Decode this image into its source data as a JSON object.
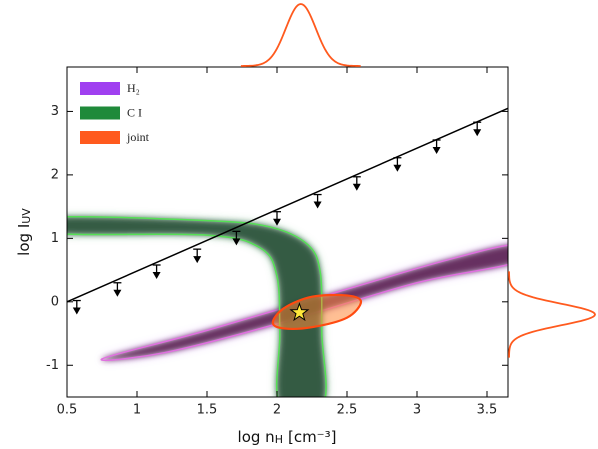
{
  "chart_data": {
    "type": "contour",
    "xlabel": [
      "log n",
      "H",
      "[cm⁻³]"
    ],
    "ylabel": [
      "log I",
      "UV"
    ],
    "xlim": [
      0.5,
      3.65
    ],
    "xticks": [
      0.5,
      1.0,
      1.5,
      2.0,
      2.5,
      3.0,
      3.5
    ],
    "ylim": [
      -1.5,
      3.7
    ],
    "yticks": [
      -1,
      0,
      1,
      2,
      3
    ],
    "legend": "upper left",
    "series": [
      {
        "name": "H₂",
        "color": "#a040f0",
        "core": "#4a0a3a",
        "edge": "#e070e0",
        "x": [
          0.75,
          1.5,
          2.5,
          3.2,
          3.7,
          3.7,
          3.0,
          2.0,
          1.2
        ],
        "y": [
          -0.9,
          -0.45,
          0.2,
          0.65,
          0.9,
          0.62,
          0.3,
          -0.35,
          -0.8
        ]
      },
      {
        "name": "C I",
        "color": "#1f8a3a",
        "core": "#163d28",
        "edge": "#55e055",
        "x": [
          0.4,
          1.5,
          1.95,
          2.22,
          2.31,
          2.32,
          2.33,
          2.02,
          2.02,
          2.0,
          1.88,
          1.5,
          0.4
        ],
        "y": [
          1.33,
          1.28,
          1.18,
          0.9,
          0.45,
          -0.5,
          -1.6,
          -1.6,
          -0.5,
          0.4,
          0.85,
          1.05,
          1.08
        ]
      },
      {
        "name": "joint",
        "color": "#ff5a1e",
        "core": "#ff8a3a",
        "edge": "#ff4a10",
        "x": [
          1.97,
          2.05,
          2.25,
          2.5,
          2.6,
          2.5,
          2.25,
          2.05
        ],
        "y": [
          -0.33,
          -0.1,
          0.08,
          0.1,
          0.0,
          -0.25,
          -0.4,
          -0.42
        ]
      }
    ],
    "limit_line": {
      "x": [
        0.5,
        3.65
      ],
      "y": [
        0.0,
        3.05
      ],
      "color": "#000000"
    },
    "upper_limits": {
      "x": [
        0.57,
        0.86,
        1.14,
        1.43,
        1.71,
        2.0,
        2.29,
        2.57,
        2.86,
        3.14,
        3.43
      ],
      "y": [
        0.02,
        0.3,
        0.58,
        0.83,
        1.11,
        1.42,
        1.69,
        1.97,
        2.27,
        2.55,
        2.83
      ]
    },
    "best_fit": {
      "x": 2.16,
      "y": -0.17,
      "color": "#ffe83a"
    },
    "marginal_x": {
      "mean": 2.17,
      "sigma": 0.107,
      "color": "#ff5a1e"
    },
    "marginal_y": {
      "mean": -0.2,
      "sigma": 0.17,
      "color": "#ff5a1e"
    }
  }
}
